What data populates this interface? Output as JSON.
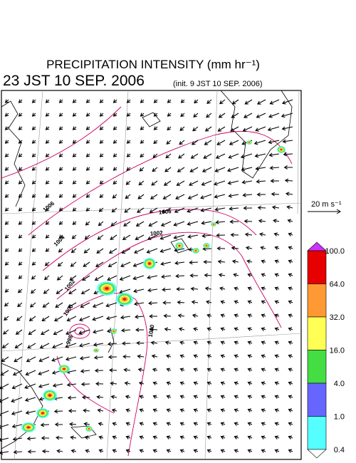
{
  "header": {
    "title": "PRECIPITATION INTENSITY (mm hr⁻¹)",
    "time": "23 JST 10 SEP. 2006",
    "init": "(init. 9 JST 10 SEP. 2006)"
  },
  "wind_legend": {
    "label": "20 m s⁻¹"
  },
  "colorbar": {
    "levels": [
      {
        "label": "100.0",
        "color": "#e60000"
      },
      {
        "label": "64.0",
        "color": "#ff9933"
      },
      {
        "label": "32.0",
        "color": "#ffff55"
      },
      {
        "label": "16.0",
        "color": "#44dd44"
      },
      {
        "label": "4.0",
        "color": "#6666ff"
      },
      {
        "label": "1.0",
        "color": "#55ffff"
      },
      {
        "label": "0.4",
        "color": "#ffffff"
      }
    ],
    "top_color": "#cc33ff"
  },
  "contours": {
    "labels": [
      "1006",
      "1004",
      "1002",
      "1000",
      "998",
      "1006",
      "1002",
      "1000"
    ]
  }
}
